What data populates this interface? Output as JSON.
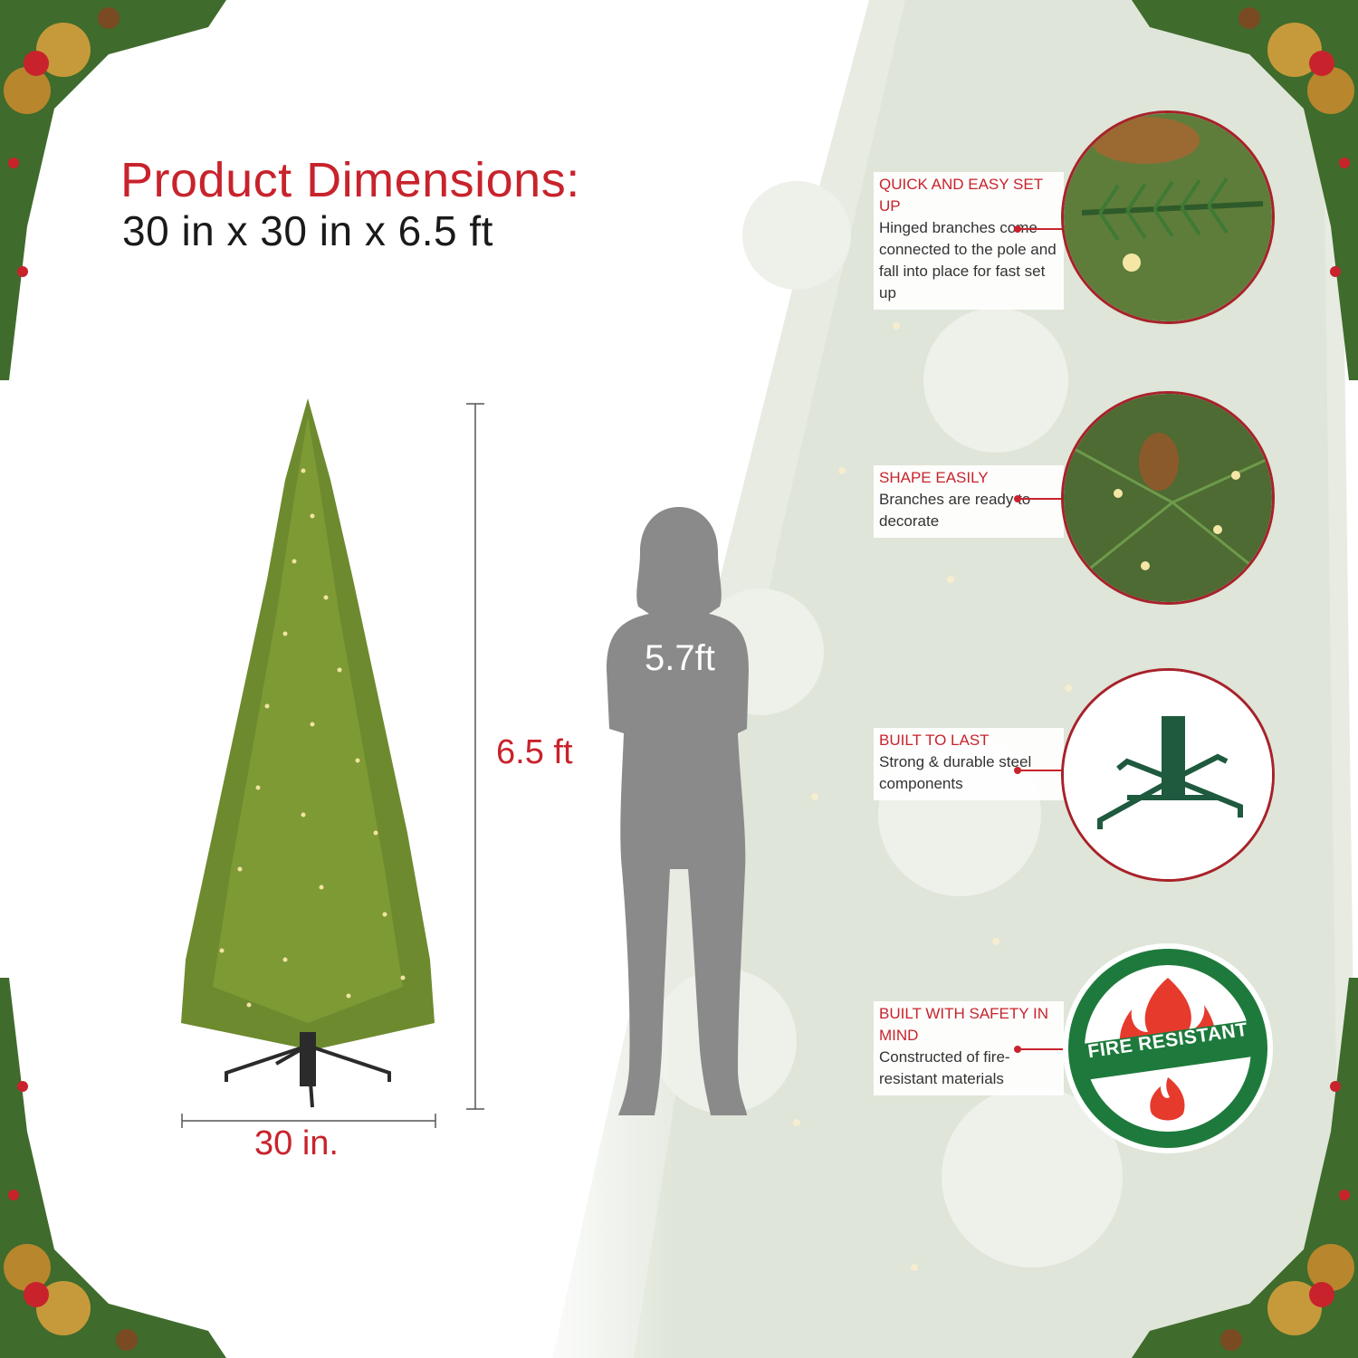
{
  "header": {
    "title": "Product Dimensions:",
    "subtitle": "30 in x 30 in x 6.5 ft"
  },
  "dimensions": {
    "height_label": "6.5 ft",
    "width_label": "30 in.",
    "person_height_label": "5.7ft"
  },
  "features": [
    {
      "title": "QUICK AND EASY SET UP",
      "description": "Hinged branches come connected to the pole and fall into place for fast set up",
      "icon": "branch-closeup-image"
    },
    {
      "title": "SHAPE EASILY",
      "description": "Branches are ready to decorate",
      "icon": "pinecone-closeup-image"
    },
    {
      "title": "BUILT TO LAST",
      "description": "Strong & durable steel components",
      "icon": "tree-stand-image"
    },
    {
      "title": "BUILT WITH SAFETY IN MIND",
      "description": "Constructed of fire-resistant materials",
      "icon": "fire-resistant-badge"
    }
  ],
  "badge": {
    "text": "FIRE RESISTANT"
  },
  "colors": {
    "accent": "#c8232c",
    "tree_green": "#6d8a2e",
    "silhouette": "#8a8a8a",
    "badge_green": "#1e7a3c"
  }
}
